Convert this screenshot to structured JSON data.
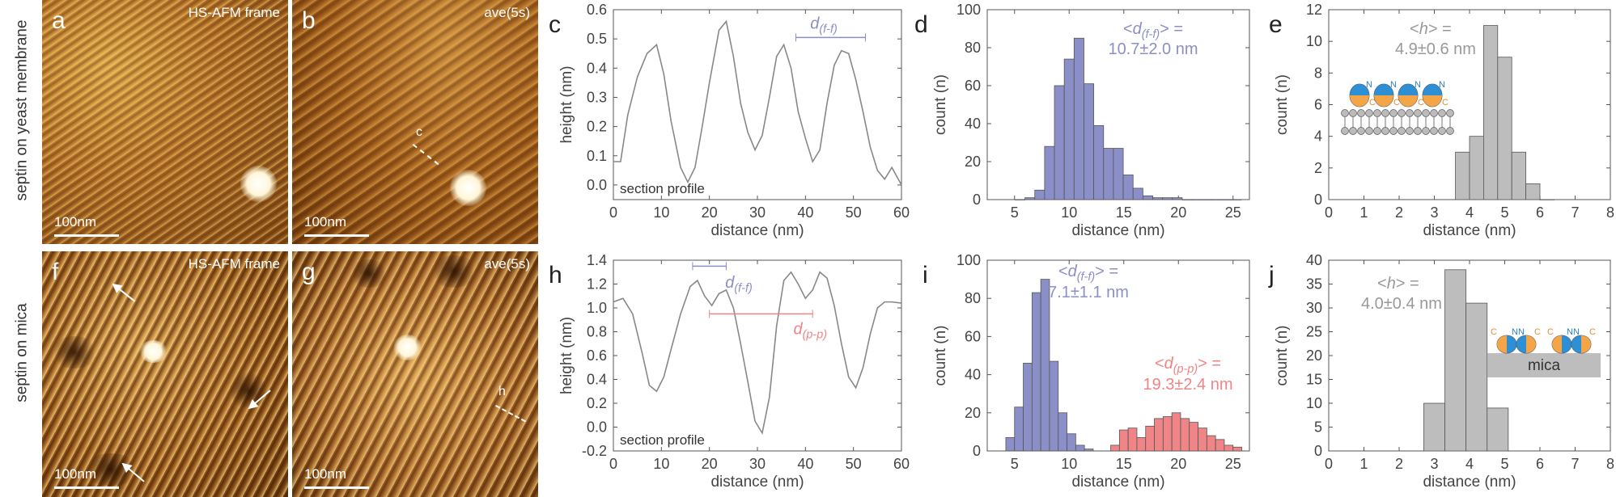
{
  "row_labels": [
    "septin on yeast membrane",
    "septin on mica"
  ],
  "images": {
    "a": {
      "label": "a",
      "title": "HS-AFM frame",
      "scalebar": "100nm"
    },
    "b": {
      "label": "b",
      "title": "ave(5s)",
      "scalebar": "100nm",
      "section_label": "c"
    },
    "f": {
      "label": "f",
      "title": "HS-AFM frame",
      "scalebar": "100nm"
    },
    "g": {
      "label": "g",
      "title": "ave(5s)",
      "scalebar": "100nm",
      "section_label": "h"
    }
  },
  "colors": {
    "lilac": "#8b8fc7",
    "salmon": "#ef8586",
    "gray_bar": "#bdbdbd",
    "line": "#888888"
  },
  "chart_data": [
    {
      "id": "c",
      "panel_label": "c",
      "type": "line",
      "xlabel": "distance (nm)",
      "ylabel": "height (nm)",
      "xlim": [
        0,
        60
      ],
      "ylim": [
        -0.05,
        0.6
      ],
      "xticks": [
        0,
        10,
        20,
        30,
        40,
        50,
        60
      ],
      "yticks": [
        0.0,
        0.1,
        0.2,
        0.3,
        0.4,
        0.5,
        0.6
      ],
      "ytick_labels": [
        "0.0",
        "0.1",
        "0.2",
        "0.3",
        "0.4",
        "0.5",
        "0.6"
      ],
      "annotation": "section profile",
      "distance_label": "d(f-f)",
      "series": [
        {
          "name": "profile",
          "x": [
            0,
            1.5,
            3,
            5,
            7,
            9,
            10.5,
            12,
            14,
            15.5,
            17,
            18.5,
            20,
            22,
            23.5,
            25,
            26.5,
            28,
            29.5,
            31,
            32.5,
            34,
            35.5,
            37,
            38.5,
            40,
            41.5,
            43,
            44.5,
            46,
            47.5,
            49,
            50.5,
            52,
            53.5,
            55,
            56.5,
            58,
            60
          ],
          "y": [
            0.08,
            0.08,
            0.24,
            0.37,
            0.45,
            0.48,
            0.38,
            0.22,
            0.06,
            0.01,
            0.06,
            0.2,
            0.35,
            0.53,
            0.56,
            0.44,
            0.28,
            0.18,
            0.12,
            0.17,
            0.3,
            0.44,
            0.48,
            0.4,
            0.25,
            0.16,
            0.08,
            0.12,
            0.28,
            0.41,
            0.46,
            0.45,
            0.36,
            0.25,
            0.13,
            0.05,
            0.02,
            0.06,
            0.0
          ]
        }
      ]
    },
    {
      "id": "d",
      "panel_label": "d",
      "type": "bar",
      "xlabel": "distance (nm)",
      "ylabel": "count (n)",
      "xlim": [
        2.5,
        26.5
      ],
      "ylim": [
        0,
        100
      ],
      "xticks": [
        5,
        10,
        15,
        20,
        25
      ],
      "yticks": [
        0,
        20,
        40,
        60,
        80,
        100
      ],
      "bin_width": 0.9,
      "series": [
        {
          "name": "d(f-f)",
          "color": "#8b8fc7",
          "x": [
            5.5,
            6.4,
            7.3,
            8.2,
            9.1,
            10.0,
            10.9,
            11.8,
            12.7,
            13.6,
            14.5,
            15.4,
            16.3,
            17.2,
            18.1,
            19.0,
            19.9,
            20.8,
            21.7,
            22.6,
            23.5,
            24.4,
            25.3
          ],
          "values": [
            0,
            1,
            5,
            28,
            60,
            74,
            85,
            61,
            39,
            27,
            27,
            13,
            6,
            2,
            1,
            1,
            1,
            0,
            0,
            0,
            0,
            0,
            0
          ]
        }
      ],
      "annotation": {
        "label": "<d(f-f)> =",
        "value": "10.7±2.0 nm",
        "color": "#8b8fc7"
      }
    },
    {
      "id": "e",
      "panel_label": "e",
      "type": "bar",
      "xlabel": "distance (nm)",
      "ylabel": "count (n)",
      "xlim": [
        0,
        8
      ],
      "ylim": [
        0,
        12
      ],
      "xticks": [
        0,
        1,
        2,
        3,
        4,
        5,
        6,
        7,
        8
      ],
      "yticks": [
        0,
        2,
        4,
        6,
        8,
        10,
        12
      ],
      "bin_width": 0.4,
      "series": [
        {
          "name": "h",
          "color": "#bdbdbd",
          "x": [
            3.8,
            4.2,
            4.6,
            5.0,
            5.4,
            5.8,
            6.2
          ],
          "values": [
            3,
            4,
            11,
            9,
            3,
            1,
            0
          ]
        }
      ],
      "annotation": {
        "label": "<h> =",
        "value": "4.9±0.6 nm",
        "color": "#999999"
      }
    },
    {
      "id": "h",
      "panel_label": "h",
      "type": "line",
      "xlabel": "distance (nm)",
      "ylabel": "height (nm)",
      "xlim": [
        0,
        60
      ],
      "ylim": [
        -0.2,
        1.4
      ],
      "xticks": [
        0,
        10,
        20,
        30,
        40,
        50,
        60
      ],
      "yticks": [
        -0.2,
        0.0,
        0.2,
        0.4,
        0.6,
        0.8,
        1.0,
        1.2,
        1.4
      ],
      "ytick_labels": [
        "-0.2",
        "0.0",
        "0.2",
        "0.4",
        "0.6",
        "0.8",
        "1.0",
        "1.2",
        "1.4"
      ],
      "annotation": "section profile",
      "distance_labels": [
        "d(f-f)",
        "d(p-p)"
      ],
      "series": [
        {
          "name": "profile",
          "x": [
            0,
            2,
            4,
            6,
            7.5,
            9,
            10.5,
            12,
            14,
            16,
            17.5,
            19,
            20.5,
            22,
            23.5,
            25,
            26.5,
            28,
            29.5,
            31,
            32.5,
            34,
            35.5,
            37,
            38.5,
            40,
            41.5,
            43,
            44.5,
            46,
            47.5,
            49,
            50.5,
            52,
            53.5,
            55,
            56.5,
            58,
            60
          ],
          "y": [
            1.05,
            1.08,
            0.95,
            0.62,
            0.35,
            0.3,
            0.42,
            0.65,
            0.95,
            1.18,
            1.23,
            1.1,
            1.02,
            1.12,
            1.15,
            1.0,
            0.7,
            0.38,
            0.05,
            -0.05,
            0.25,
            0.85,
            1.23,
            1.3,
            1.2,
            1.08,
            1.15,
            1.3,
            1.25,
            1.02,
            0.7,
            0.42,
            0.33,
            0.5,
            0.78,
            1.0,
            1.05,
            1.05,
            1.04
          ]
        }
      ]
    },
    {
      "id": "i",
      "panel_label": "i",
      "type": "bar",
      "xlabel": "distance (nm)",
      "ylabel": "count (n)",
      "xlim": [
        2.5,
        26.5
      ],
      "ylim": [
        0,
        100
      ],
      "xticks": [
        5,
        10,
        15,
        20,
        25
      ],
      "yticks": [
        0,
        20,
        40,
        60,
        80,
        100
      ],
      "bin_width": 0.8,
      "series": [
        {
          "name": "d(f-f)",
          "color": "#8b8fc7",
          "x": [
            4.6,
            5.4,
            6.2,
            7.0,
            7.8,
            8.6,
            9.4,
            10.2,
            11.0,
            11.8
          ],
          "values": [
            7,
            23,
            46,
            83,
            90,
            47,
            20,
            9,
            3,
            1
          ]
        },
        {
          "name": "d(p-p)",
          "color": "#ef8586",
          "x": [
            14.2,
            15.0,
            15.8,
            16.6,
            17.4,
            18.2,
            19.0,
            19.8,
            20.6,
            21.4,
            22.2,
            23.0,
            23.8,
            24.6,
            25.4
          ],
          "values": [
            3,
            11,
            12,
            7,
            13,
            17,
            18,
            20,
            17,
            15,
            12,
            8,
            6,
            3,
            2
          ]
        }
      ],
      "annotation": {
        "label": "<d(f-f)> =",
        "value": "7.1±1.1 nm",
        "color": "#8b8fc7"
      },
      "annotation2": {
        "label": "<d(p-p)> =",
        "value": "19.3±2.4 nm",
        "color": "#ef8586"
      }
    },
    {
      "id": "j",
      "panel_label": "j",
      "type": "bar",
      "xlabel": "distance (nm)",
      "ylabel": "count (n)",
      "xlim": [
        0,
        8
      ],
      "ylim": [
        0,
        40
      ],
      "xticks": [
        0,
        1,
        2,
        3,
        4,
        5,
        6,
        7,
        8
      ],
      "yticks": [
        0,
        5,
        10,
        15,
        20,
        25,
        30,
        35,
        40
      ],
      "bin_width": 0.6,
      "series": [
        {
          "name": "h",
          "color": "#bdbdbd",
          "x": [
            3.0,
            3.6,
            4.2,
            4.8
          ],
          "values": [
            10,
            38,
            31,
            9
          ]
        }
      ],
      "annotation": {
        "label": "<h> =",
        "value": "4.0±0.4 nm",
        "color": "#999999"
      }
    }
  ],
  "schematics": {
    "e": {
      "labels": [
        "N",
        "C",
        "N",
        "C",
        "N",
        "C",
        "N",
        "C"
      ]
    },
    "j": {
      "labels": [
        "C",
        "NN",
        "C",
        "C",
        "NN",
        "C"
      ],
      "substrate": "mica"
    }
  }
}
